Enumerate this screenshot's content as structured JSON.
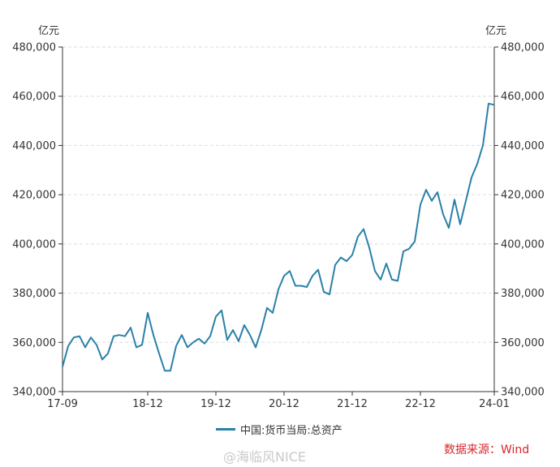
{
  "chart_data": {
    "type": "line",
    "y_unit_left": "亿元",
    "y_unit_right": "亿元",
    "ylim": [
      340000,
      480000
    ],
    "yticks": [
      "340,000",
      "360,000",
      "380,000",
      "400,000",
      "420,000",
      "440,000",
      "460,000",
      "480,000"
    ],
    "ytick_values": [
      340000,
      360000,
      380000,
      400000,
      420000,
      440000,
      460000,
      480000
    ],
    "xticks": [
      "17-09",
      "18-12",
      "19-12",
      "20-12",
      "21-12",
      "22-12",
      "24-01"
    ],
    "grid": true,
    "legend_position": "bottom",
    "color": "#2a80a8",
    "series": [
      {
        "name": "中国:货币当局:总资产",
        "values": [
          350000,
          358500,
          362000,
          362500,
          358000,
          362000,
          359000,
          353000,
          355500,
          362500,
          363000,
          362500,
          366000,
          358000,
          359000,
          372000,
          363000,
          355500,
          348500,
          348500,
          358500,
          363000,
          358000,
          360000,
          361500,
          359500,
          362500,
          370500,
          373000,
          361000,
          365000,
          360500,
          367000,
          363000,
          358000,
          365000,
          374000,
          372000,
          381500,
          387000,
          389000,
          383000,
          383000,
          382500,
          387000,
          389500,
          380500,
          379500,
          391500,
          394500,
          393000,
          395500,
          403000,
          406000,
          398500,
          389000,
          385500,
          392000,
          385500,
          385000,
          397000,
          398000,
          401000,
          416000,
          422000,
          417500,
          421000,
          412000,
          406500,
          418000,
          408000,
          417500,
          427000,
          432500,
          440000,
          457000,
          456500
        ]
      }
    ]
  },
  "legend": {
    "label": "中国:货币当局:总资产"
  },
  "footer": {
    "source": "数据来源：Wind",
    "watermark": "@海临风NICE"
  }
}
